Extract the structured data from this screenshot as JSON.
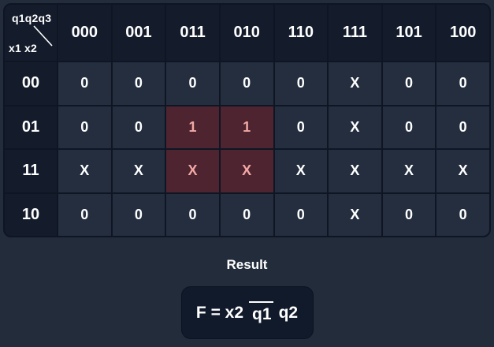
{
  "app": {
    "background": "#232c3b"
  },
  "kmap": {
    "corner": {
      "top_label": "q1q2q3",
      "bottom_label": "x1 x2"
    },
    "col_headers": [
      "000",
      "001",
      "011",
      "010",
      "110",
      "111",
      "101",
      "100"
    ],
    "row_headers": [
      "00",
      "01",
      "11",
      "10"
    ],
    "cells": [
      [
        "0",
        "0",
        "0",
        "0",
        "0",
        "X",
        "0",
        "0"
      ],
      [
        "0",
        "0",
        "1",
        "1",
        "0",
        "X",
        "0",
        "0"
      ],
      [
        "X",
        "X",
        "X",
        "X",
        "X",
        "X",
        "X",
        "X"
      ],
      [
        "0",
        "0",
        "0",
        "0",
        "0",
        "X",
        "0",
        "0"
      ]
    ],
    "highlighted_cells": [
      [
        1,
        2
      ],
      [
        1,
        3
      ],
      [
        2,
        2
      ],
      [
        2,
        3
      ]
    ],
    "colors": {
      "header_bg": "#141c2c",
      "cell_bg": "#242e3f",
      "grid_line": "#0e1624",
      "highlight_bg": "#4d2430",
      "highlight_text": "#f2a9a4",
      "text": "#ffffff"
    }
  },
  "result": {
    "heading": "Result",
    "formula": {
      "prefix": "F = x2",
      "overlined": "q1",
      "suffix": "q2"
    },
    "box_bg": "#111a2b"
  }
}
